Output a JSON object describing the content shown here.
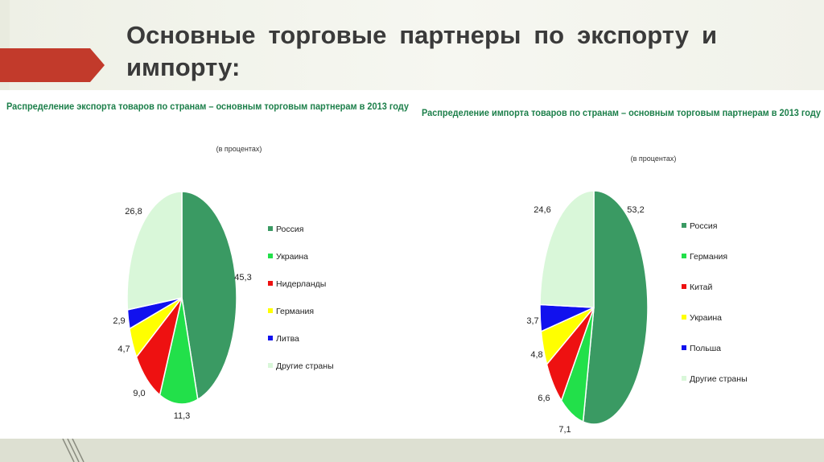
{
  "slide": {
    "title": "Основные торговые партнеры по экспорту и импорту:"
  },
  "colors": {
    "accent": "#c0392b",
    "series": [
      "#3a9a63",
      "#22e04a",
      "#ee1111",
      "#ffff00",
      "#1111ee",
      "#d9f7d9"
    ]
  },
  "chart_data": [
    {
      "type": "pie",
      "title": "Распределение экспорта товаров по странам – основным торговым партнерам в 2013 году",
      "subtitle": "(в процентах)",
      "categories": [
        "Россия",
        "Украина",
        "Нидерланды",
        "Германия",
        "Литва",
        "Другие страны"
      ],
      "values": [
        45.3,
        11.3,
        9.0,
        4.7,
        2.9,
        26.8
      ],
      "labels": [
        "45,3",
        "11,3",
        "9,0",
        "4,7",
        "2,9",
        "26,8"
      ],
      "legend": "right"
    },
    {
      "type": "pie",
      "title": "Распределение импорта товаров по странам – основным торговым партнерам в 2013 году",
      "subtitle": "(в процентах)",
      "categories": [
        "Россия",
        "Германия",
        "Китай",
        "Украина",
        "Польша",
        "Другие страны"
      ],
      "values": [
        53.2,
        7.1,
        6.6,
        4.8,
        3.7,
        24.6
      ],
      "labels": [
        "53,2",
        "7,1",
        "6,6",
        "4,8",
        "3,7",
        "24,6"
      ],
      "legend": "right"
    }
  ]
}
